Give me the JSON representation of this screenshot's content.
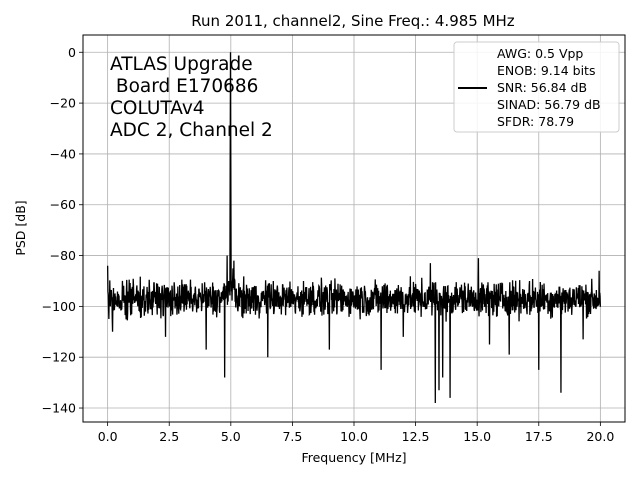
{
  "chart_data": {
    "type": "line",
    "title": "Run 2011, channel2, Sine Freq.: 4.985 MHz",
    "xlabel": "Frequency [MHz]",
    "ylabel": "PSD [dB]",
    "xlim": [
      -1.0,
      21.0
    ],
    "ylim": [
      -145.5,
      6.8
    ],
    "xticks": [
      0.0,
      2.5,
      5.0,
      7.5,
      10.0,
      12.5,
      15.0,
      17.5,
      20.0
    ],
    "xtick_labels": [
      "0.0",
      "2.5",
      "5.0",
      "7.5",
      "10.0",
      "12.5",
      "15.0",
      "17.5",
      "20.0"
    ],
    "yticks": [
      0,
      -20,
      -40,
      -60,
      -80,
      -100,
      -120,
      -140
    ],
    "ytick_labels": [
      "0",
      "−20",
      "−40",
      "−60",
      "−80",
      "−100",
      "−120",
      "−140"
    ],
    "grid": true,
    "line_color": "#000000",
    "annotation_lines": [
      "ATLAS Upgrade",
      " Board E170686",
      "COLUTAv4",
      "ADC 2, Channel 2"
    ],
    "legend": {
      "placement": "top-right",
      "lines": [
        "AWG: 0.5 Vpp",
        "ENOB: 9.14 bits",
        "SNR: 56.84 dB",
        "SINAD: 56.79 dB",
        "SFDR: 78.79"
      ]
    },
    "series": [
      {
        "x_range": [
          0.0,
          20.0
        ],
        "noise_floor_center": -97,
        "noise_floor_band": [
          -107,
          -87
        ],
        "peak": {
          "x": 4.985,
          "y": 0.0
        },
        "spurs": [
          {
            "x": 0.0,
            "y": -84
          },
          {
            "x": 4.85,
            "y": -80
          },
          {
            "x": 5.12,
            "y": -82
          },
          {
            "x": 13.1,
            "y": -83
          },
          {
            "x": 15.05,
            "y": -81
          },
          {
            "x": 19.95,
            "y": -86
          }
        ],
        "dips": [
          {
            "x": 0.2,
            "y": -110
          },
          {
            "x": 2.35,
            "y": -112
          },
          {
            "x": 4.0,
            "y": -117
          },
          {
            "x": 4.75,
            "y": -128
          },
          {
            "x": 6.5,
            "y": -120
          },
          {
            "x": 9.0,
            "y": -117
          },
          {
            "x": 11.1,
            "y": -125
          },
          {
            "x": 12.0,
            "y": -112
          },
          {
            "x": 13.3,
            "y": -138
          },
          {
            "x": 13.45,
            "y": -133
          },
          {
            "x": 13.6,
            "y": -128
          },
          {
            "x": 13.9,
            "y": -136
          },
          {
            "x": 15.5,
            "y": -115
          },
          {
            "x": 16.3,
            "y": -119
          },
          {
            "x": 17.5,
            "y": -125
          },
          {
            "x": 18.4,
            "y": -134
          },
          {
            "x": 19.3,
            "y": -113
          }
        ]
      }
    ]
  }
}
